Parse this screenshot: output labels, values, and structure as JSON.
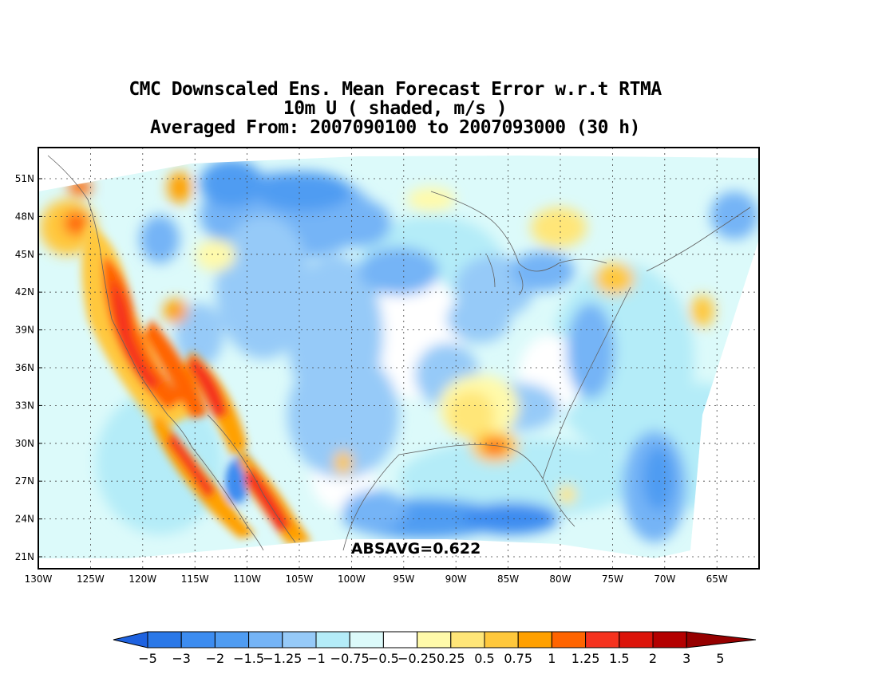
{
  "title": {
    "line1": "CMC Downscaled Ens. Mean Forecast Error w.r.t RTMA",
    "line2": "10m U ( shaded, m/s )",
    "line3": "Averaged From: 2007090100 to 2007093000 (30 h)"
  },
  "map": {
    "lat_labels": [
      "51N",
      "48N",
      "45N",
      "42N",
      "39N",
      "36N",
      "33N",
      "30N",
      "27N",
      "24N",
      "21N"
    ],
    "lon_labels": [
      "130W",
      "125W",
      "120W",
      "115W",
      "110W",
      "105W",
      "100W",
      "95W",
      "90W",
      "85W",
      "80W",
      "75W",
      "70W",
      "65W"
    ],
    "annotation": "ABSAVG=0.622"
  },
  "colorbar": {
    "labels": [
      "−5",
      "−3",
      "−2",
      "−1.5",
      "−1.25",
      "−1",
      "−0.75",
      "−0.5",
      "−0.25",
      "0.25",
      "0.5",
      "0.75",
      "1",
      "1.25",
      "1.5",
      "2",
      "3",
      "5"
    ],
    "colors": [
      "#1e62e0",
      "#2a78e8",
      "#3c8cf0",
      "#4f9cf2",
      "#75b4f6",
      "#96caf8",
      "#b4ecf8",
      "#dcfafa",
      "#ffffff",
      "#fffaaa",
      "#ffe678",
      "#ffc83c",
      "#ffa000",
      "#ff6400",
      "#f5321e",
      "#dc140a",
      "#b40000",
      "#960000"
    ]
  }
}
